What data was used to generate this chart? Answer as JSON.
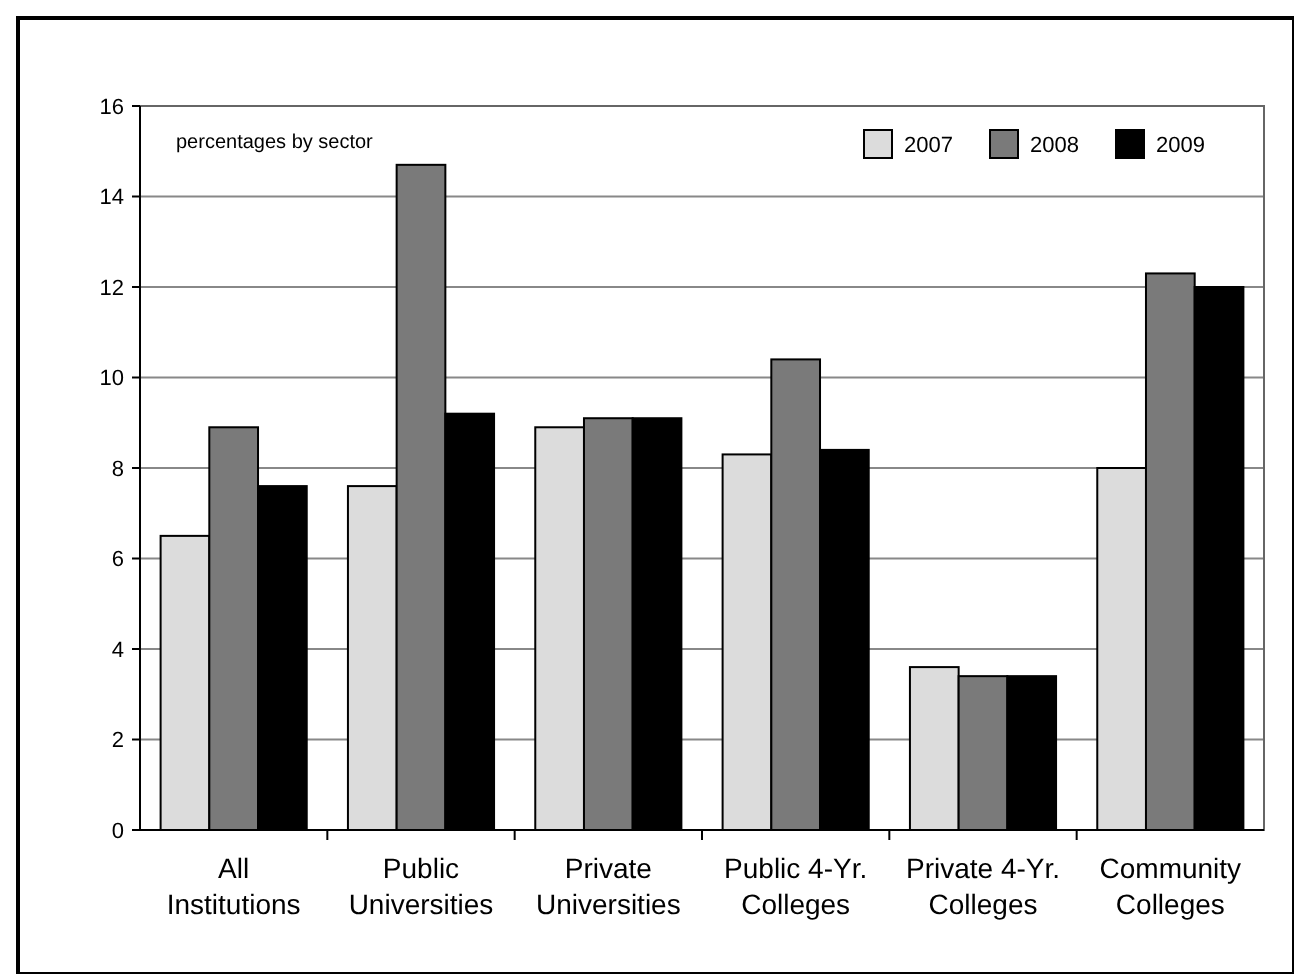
{
  "chart_data": {
    "type": "bar",
    "annotations": [
      "percentages by sector"
    ],
    "categories": [
      "All\nInstitutions",
      "Public\nUniversities",
      "Private\nUniversities",
      "Public 4-Yr.\nColleges",
      "Private 4-Yr.\nColleges",
      "Community\nColleges"
    ],
    "series": [
      {
        "name": "2007",
        "color": "#dcdcdc",
        "values": [
          6.5,
          7.6,
          8.9,
          8.3,
          3.6,
          8.0
        ]
      },
      {
        "name": "2008",
        "color": "#7a7a7a",
        "values": [
          8.9,
          14.7,
          9.1,
          10.4,
          3.4,
          12.3
        ]
      },
      {
        "name": "2009",
        "color": "#000000",
        "values": [
          7.6,
          9.2,
          9.1,
          8.4,
          3.4,
          12.0
        ]
      }
    ],
    "ylim": [
      0,
      16
    ],
    "yticks": [
      0,
      2,
      4,
      6,
      8,
      10,
      12,
      14,
      16
    ],
    "grid": "y",
    "legend": "top right"
  }
}
